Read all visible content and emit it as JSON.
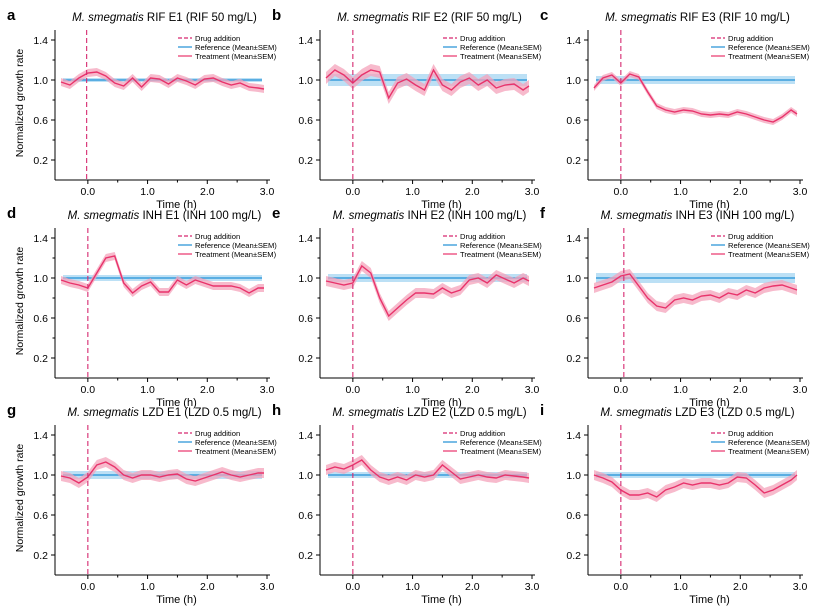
{
  "figure": {
    "ylabel": "Normalized growth rate",
    "xlabel": "Time (h)",
    "colors": {
      "treatment": "#e8336b",
      "treatment_band": "#f4a3bb",
      "reference": "#1f8fd6",
      "reference_band": "#a6d6f2",
      "drug": "#d6286f"
    },
    "legend": {
      "drug": "Drug addition",
      "reference": "Reference (Mean±SEM)",
      "treatment": "Treatment (Mean±SEM)"
    }
  },
  "chart_data": [
    {
      "type": "line",
      "panel": "a",
      "title_italic": "M. smegmatis",
      "title_rest": "RIF E1 (RIF 50 mg/L)",
      "drug_time": -0.02,
      "xlabel": "Time (h)",
      "ylabel": "Normalized growth rate",
      "xlim": [
        -0.55,
        3.05
      ],
      "ylim": [
        0,
        1.5
      ],
      "xticks": [
        0,
        1,
        2,
        3
      ],
      "xtick_labels": [
        "0.0",
        "1.0",
        "2.0",
        "3.0"
      ],
      "yticks": [
        0.2,
        0.6,
        1.0,
        1.4
      ],
      "ytick_labels": [
        "0.2",
        "0.6",
        "1.0",
        "1.4"
      ],
      "legend_position": "top-right",
      "reference": {
        "mean": 1.0,
        "sem": 0.02
      },
      "series": [
        {
          "name": "Treatment (Mean±SEM)",
          "x": [
            -0.45,
            -0.3,
            -0.15,
            0,
            0.15,
            0.3,
            0.45,
            0.6,
            0.75,
            0.9,
            1.05,
            1.2,
            1.35,
            1.5,
            1.65,
            1.8,
            1.95,
            2.1,
            2.25,
            2.4,
            2.55,
            2.7,
            2.85,
            2.95
          ],
          "y": [
            0.98,
            0.95,
            1.02,
            1.07,
            1.08,
            1.04,
            0.97,
            0.94,
            1.02,
            0.93,
            1.02,
            1.01,
            0.96,
            1.02,
            0.99,
            0.95,
            1.01,
            1.02,
            0.98,
            0.95,
            0.97,
            0.93,
            0.92,
            0.91
          ],
          "sem": 0.04
        }
      ]
    },
    {
      "type": "line",
      "panel": "b",
      "title_italic": "M. smegmatis",
      "title_rest": "RIF E2 (RIF 50 mg/L)",
      "drug_time": 0.0,
      "xlabel": "Time (h)",
      "ylabel": "",
      "xlim": [
        -0.55,
        3.05
      ],
      "ylim": [
        0,
        1.5
      ],
      "xticks": [
        0,
        1,
        2,
        3
      ],
      "xtick_labels": [
        "0.0",
        "1.0",
        "2.0",
        "3.0"
      ],
      "yticks": [
        0.2,
        0.6,
        1.0,
        1.4
      ],
      "ytick_labels": [
        "0.2",
        "0.6",
        "1.0",
        "1.4"
      ],
      "legend_position": "top-right",
      "reference": {
        "mean": 1.0,
        "sem": 0.06
      },
      "series": [
        {
          "name": "Treatment (Mean±SEM)",
          "x": [
            -0.45,
            -0.3,
            -0.15,
            0,
            0.15,
            0.3,
            0.45,
            0.6,
            0.75,
            0.9,
            1.05,
            1.2,
            1.35,
            1.5,
            1.65,
            1.8,
            1.95,
            2.1,
            2.25,
            2.4,
            2.55,
            2.7,
            2.85,
            2.95
          ],
          "y": [
            1.02,
            1.1,
            1.05,
            0.97,
            1.05,
            1.1,
            1.08,
            0.82,
            0.97,
            1.01,
            0.95,
            0.9,
            1.1,
            0.95,
            0.9,
            0.98,
            1.02,
            0.95,
            1.0,
            0.92,
            0.95,
            0.96,
            0.9,
            0.94
          ],
          "sem": 0.06
        }
      ]
    },
    {
      "type": "line",
      "panel": "c",
      "title_italic": "M. smegmatis",
      "title_rest": "RIF E3 (RIF 10 mg/L)",
      "drug_time": 0.0,
      "xlabel": "Time (h)",
      "ylabel": "",
      "xlim": [
        -0.55,
        3.05
      ],
      "ylim": [
        0,
        1.5
      ],
      "xticks": [
        0,
        1,
        2,
        3
      ],
      "xtick_labels": [
        "0.0",
        "1.0",
        "2.0",
        "3.0"
      ],
      "yticks": [
        0.2,
        0.6,
        1.0,
        1.4
      ],
      "ytick_labels": [
        "0.2",
        "0.6",
        "1.0",
        "1.4"
      ],
      "legend_position": "top-right",
      "reference": {
        "mean": 1.0,
        "sem": 0.04
      },
      "series": [
        {
          "name": "Treatment (Mean±SEM)",
          "x": [
            -0.45,
            -0.3,
            -0.15,
            0,
            0.15,
            0.3,
            0.45,
            0.6,
            0.75,
            0.9,
            1.05,
            1.2,
            1.35,
            1.5,
            1.65,
            1.8,
            1.95,
            2.1,
            2.25,
            2.4,
            2.55,
            2.7,
            2.85,
            2.95
          ],
          "y": [
            0.92,
            1.02,
            1.05,
            0.97,
            1.06,
            1.03,
            0.88,
            0.74,
            0.7,
            0.68,
            0.7,
            0.69,
            0.66,
            0.65,
            0.66,
            0.65,
            0.68,
            0.66,
            0.63,
            0.6,
            0.58,
            0.63,
            0.7,
            0.66
          ],
          "sem": 0.03
        }
      ]
    },
    {
      "type": "line",
      "panel": "d",
      "title_italic": "M. smegmatis",
      "title_rest": "INH E1 (INH 100 mg/L)",
      "drug_time": 0.0,
      "xlabel": "Time (h)",
      "ylabel": "Normalized growth rate",
      "xlim": [
        -0.55,
        3.05
      ],
      "ylim": [
        0,
        1.5
      ],
      "xticks": [
        0,
        1,
        2,
        3
      ],
      "xtick_labels": [
        "0.0",
        "1.0",
        "2.0",
        "3.0"
      ],
      "yticks": [
        0.2,
        0.6,
        1.0,
        1.4
      ],
      "ytick_labels": [
        "0.2",
        "0.6",
        "1.0",
        "1.4"
      ],
      "legend_position": "top-right",
      "reference": {
        "mean": 1.0,
        "sem": 0.03
      },
      "series": [
        {
          "name": "Treatment (Mean±SEM)",
          "x": [
            -0.45,
            -0.3,
            -0.15,
            0,
            0.15,
            0.3,
            0.45,
            0.6,
            0.75,
            0.9,
            1.05,
            1.2,
            1.35,
            1.5,
            1.65,
            1.8,
            1.95,
            2.1,
            2.25,
            2.4,
            2.55,
            2.7,
            2.85,
            2.95
          ],
          "y": [
            0.98,
            0.95,
            0.93,
            0.9,
            1.05,
            1.2,
            1.22,
            0.95,
            0.85,
            0.92,
            0.96,
            0.86,
            0.86,
            0.98,
            0.93,
            0.98,
            0.95,
            0.92,
            0.92,
            0.92,
            0.9,
            0.85,
            0.9,
            0.9
          ],
          "sem": 0.04
        }
      ]
    },
    {
      "type": "line",
      "panel": "e",
      "title_italic": "M. smegmatis",
      "title_rest": "INH E2 (INH 100 mg/L)",
      "drug_time": 0.0,
      "xlabel": "Time (h)",
      "ylabel": "",
      "xlim": [
        -0.55,
        3.05
      ],
      "ylim": [
        0,
        1.5
      ],
      "xticks": [
        0,
        1,
        2,
        3
      ],
      "xtick_labels": [
        "0.0",
        "1.0",
        "2.0",
        "3.0"
      ],
      "yticks": [
        0.2,
        0.6,
        1.0,
        1.4
      ],
      "ytick_labels": [
        "0.2",
        "0.6",
        "1.0",
        "1.4"
      ],
      "legend_position": "top-right",
      "reference": {
        "mean": 1.0,
        "sem": 0.04
      },
      "series": [
        {
          "name": "Treatment (Mean±SEM)",
          "x": [
            -0.45,
            -0.3,
            -0.15,
            0,
            0.15,
            0.3,
            0.45,
            0.6,
            0.75,
            0.9,
            1.05,
            1.2,
            1.35,
            1.5,
            1.65,
            1.8,
            1.95,
            2.1,
            2.25,
            2.4,
            2.55,
            2.7,
            2.85,
            2.95
          ],
          "y": [
            0.97,
            0.95,
            0.93,
            0.95,
            1.12,
            1.05,
            0.8,
            0.62,
            0.7,
            0.78,
            0.85,
            0.85,
            0.84,
            0.9,
            0.85,
            0.88,
            0.98,
            1.0,
            0.95,
            1.03,
            0.99,
            0.95,
            1.0,
            0.97
          ],
          "sem": 0.05
        }
      ]
    },
    {
      "type": "line",
      "panel": "f",
      "title_italic": "M. smegmatis",
      "title_rest": "INH E3 (INH 100 mg/L)",
      "drug_time": 0.05,
      "xlabel": "Time (h)",
      "ylabel": "",
      "xlim": [
        -0.55,
        3.05
      ],
      "ylim": [
        0,
        1.5
      ],
      "xticks": [
        0,
        1,
        2,
        3
      ],
      "xtick_labels": [
        "0.0",
        "1.0",
        "2.0",
        "3.0"
      ],
      "yticks": [
        0.2,
        0.6,
        1.0,
        1.4
      ],
      "ytick_labels": [
        "0.2",
        "0.6",
        "1.0",
        "1.4"
      ],
      "legend_position": "top-right",
      "reference": {
        "mean": 1.0,
        "sem": 0.05
      },
      "series": [
        {
          "name": "Treatment (Mean±SEM)",
          "x": [
            -0.45,
            -0.3,
            -0.15,
            0,
            0.15,
            0.3,
            0.45,
            0.6,
            0.75,
            0.9,
            1.05,
            1.2,
            1.35,
            1.5,
            1.65,
            1.8,
            1.95,
            2.1,
            2.25,
            2.4,
            2.55,
            2.7,
            2.85,
            2.95
          ],
          "y": [
            0.9,
            0.93,
            0.96,
            1.02,
            1.04,
            0.92,
            0.8,
            0.72,
            0.7,
            0.78,
            0.8,
            0.78,
            0.82,
            0.83,
            0.8,
            0.85,
            0.83,
            0.88,
            0.85,
            0.9,
            0.92,
            0.93,
            0.9,
            0.88
          ],
          "sem": 0.05
        }
      ]
    },
    {
      "type": "line",
      "panel": "g",
      "title_italic": "M. smegmatis",
      "title_rest": "LZD E1 (LZD 0.5 mg/L)",
      "drug_time": 0.0,
      "xlabel": "Time (h)",
      "ylabel": "Normalized growth rate",
      "xlim": [
        -0.55,
        3.05
      ],
      "ylim": [
        0,
        1.5
      ],
      "xticks": [
        0,
        1,
        2,
        3
      ],
      "xtick_labels": [
        "0.0",
        "1.0",
        "2.0",
        "3.0"
      ],
      "yticks": [
        0.2,
        0.6,
        1.0,
        1.4
      ],
      "ytick_labels": [
        "0.2",
        "0.6",
        "1.0",
        "1.4"
      ],
      "legend_position": "top-right",
      "reference": {
        "mean": 1.0,
        "sem": 0.04
      },
      "series": [
        {
          "name": "Treatment (Mean±SEM)",
          "x": [
            -0.45,
            -0.3,
            -0.15,
            0,
            0.15,
            0.3,
            0.45,
            0.6,
            0.75,
            0.9,
            1.05,
            1.2,
            1.35,
            1.5,
            1.65,
            1.8,
            1.95,
            2.1,
            2.25,
            2.4,
            2.55,
            2.7,
            2.85,
            2.95
          ],
          "y": [
            0.99,
            0.97,
            0.92,
            0.98,
            1.1,
            1.13,
            1.08,
            1.0,
            0.97,
            1.0,
            1.0,
            0.98,
            1.0,
            1.01,
            0.96,
            0.94,
            0.97,
            1.0,
            1.03,
            1.0,
            0.98,
            1.0,
            1.02,
            1.02
          ],
          "sem": 0.05
        }
      ]
    },
    {
      "type": "line",
      "panel": "h",
      "title_italic": "M. smegmatis",
      "title_rest": "LZD E2 (LZD 0.5 mg/L)",
      "drug_time": 0.0,
      "xlabel": "Time (h)",
      "ylabel": "",
      "xlim": [
        -0.55,
        3.05
      ],
      "ylim": [
        0,
        1.5
      ],
      "xticks": [
        0,
        1,
        2,
        3
      ],
      "xtick_labels": [
        "0.0",
        "1.0",
        "2.0",
        "3.0"
      ],
      "yticks": [
        0.2,
        0.6,
        1.0,
        1.4
      ],
      "ytick_labels": [
        "0.2",
        "0.6",
        "1.0",
        "1.4"
      ],
      "legend_position": "top-right",
      "reference": {
        "mean": 1.0,
        "sem": 0.03
      },
      "series": [
        {
          "name": "Treatment (Mean±SEM)",
          "x": [
            -0.45,
            -0.3,
            -0.15,
            0,
            0.15,
            0.3,
            0.45,
            0.6,
            0.75,
            0.9,
            1.05,
            1.2,
            1.35,
            1.5,
            1.65,
            1.8,
            1.95,
            2.1,
            2.25,
            2.4,
            2.55,
            2.7,
            2.85,
            2.95
          ],
          "y": [
            1.05,
            1.08,
            1.06,
            1.1,
            1.15,
            1.05,
            0.98,
            0.95,
            0.98,
            0.95,
            1.0,
            0.98,
            1.0,
            1.1,
            1.03,
            0.96,
            0.98,
            1.0,
            0.98,
            0.97,
            1.0,
            0.99,
            0.98,
            0.97
          ],
          "sem": 0.05
        }
      ]
    },
    {
      "type": "line",
      "panel": "i",
      "title_italic": "M. smegmatis",
      "title_rest": "LZD E3 (LZD 0.5 mg/L)",
      "drug_time": 0.0,
      "xlabel": "Time (h)",
      "ylabel": "",
      "xlim": [
        -0.55,
        3.05
      ],
      "ylim": [
        0,
        1.5
      ],
      "xticks": [
        0,
        1,
        2,
        3
      ],
      "xtick_labels": [
        "0.0",
        "1.0",
        "2.0",
        "3.0"
      ],
      "yticks": [
        0.2,
        0.6,
        1.0,
        1.4
      ],
      "ytick_labels": [
        "0.2",
        "0.6",
        "1.0",
        "1.4"
      ],
      "legend_position": "top-right",
      "reference": {
        "mean": 1.0,
        "sem": 0.03
      },
      "series": [
        {
          "name": "Treatment (Mean±SEM)",
          "x": [
            -0.45,
            -0.3,
            -0.15,
            0,
            0.15,
            0.3,
            0.45,
            0.6,
            0.75,
            0.9,
            1.05,
            1.2,
            1.35,
            1.5,
            1.65,
            1.8,
            1.95,
            2.1,
            2.25,
            2.4,
            2.55,
            2.7,
            2.85,
            2.95
          ],
          "y": [
            1.0,
            0.97,
            0.93,
            0.85,
            0.8,
            0.8,
            0.82,
            0.78,
            0.85,
            0.88,
            0.92,
            0.9,
            0.92,
            0.92,
            0.9,
            0.92,
            0.98,
            0.97,
            0.9,
            0.82,
            0.85,
            0.9,
            0.95,
            1.0
          ],
          "sem": 0.05
        }
      ]
    }
  ]
}
